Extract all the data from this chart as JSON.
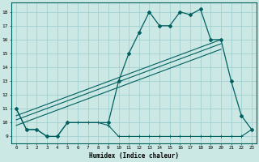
{
  "xlabel": "Humidex (Indice chaleur)",
  "bg_color": "#cce8e4",
  "line_color": "#006060",
  "grid_color": "#99cccc",
  "xlim": [
    -0.5,
    23.5
  ],
  "ylim": [
    8.5,
    18.7
  ],
  "xticks": [
    0,
    1,
    2,
    3,
    4,
    5,
    6,
    7,
    8,
    9,
    10,
    11,
    12,
    13,
    14,
    15,
    16,
    17,
    18,
    19,
    20,
    21,
    22,
    23
  ],
  "yticks": [
    9,
    10,
    11,
    12,
    13,
    14,
    15,
    16,
    17,
    18
  ],
  "line1_x": [
    0,
    1,
    2,
    3,
    4,
    5,
    6,
    7,
    8,
    9,
    10,
    11,
    12,
    13,
    14,
    15,
    16,
    17,
    18,
    19,
    20,
    21,
    22,
    23
  ],
  "line1_y": [
    11,
    9.5,
    9.5,
    9,
    9,
    10,
    10,
    10,
    10,
    9.8,
    9,
    9,
    9,
    9,
    9,
    9,
    9,
    9,
    9,
    9,
    9,
    9,
    9,
    9.5
  ],
  "line2_x": [
    0,
    1,
    2,
    3,
    4,
    5,
    9,
    10,
    11,
    12,
    13,
    14,
    15,
    16,
    17,
    18,
    19,
    20,
    21,
    22,
    23
  ],
  "line2_y": [
    11,
    9.5,
    9.5,
    9,
    9,
    10,
    10,
    13,
    15,
    16.5,
    18,
    17,
    17,
    18,
    17.8,
    18.2,
    16,
    16,
    13,
    10.5,
    9.5
  ],
  "line3_x": [
    0,
    20
  ],
  "line3_y": [
    10.5,
    16.0
  ],
  "line4_x": [
    0,
    20
  ],
  "line4_y": [
    10.2,
    15.7
  ],
  "line5_x": [
    0,
    20
  ],
  "line5_y": [
    9.8,
    15.3
  ]
}
